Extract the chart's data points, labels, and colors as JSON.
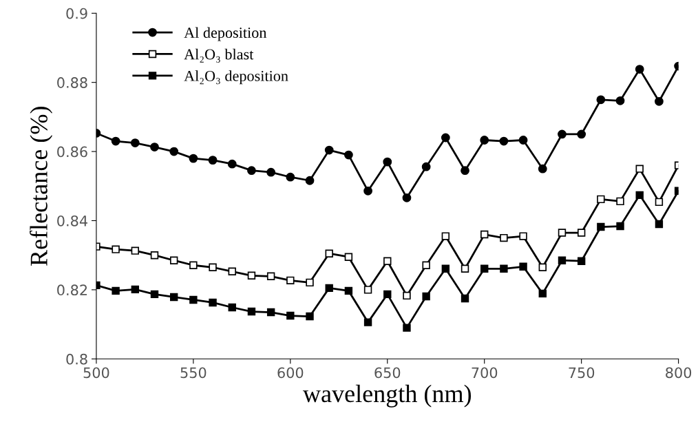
{
  "chart_data": {
    "type": "line",
    "xlabel": "wavelength (nm)",
    "ylabel": "Reflectance (%)",
    "x": [
      500,
      510,
      520,
      530,
      540,
      550,
      560,
      570,
      580,
      590,
      600,
      610,
      620,
      630,
      640,
      650,
      660,
      670,
      680,
      690,
      700,
      710,
      720,
      730,
      740,
      750,
      760,
      770,
      780,
      790,
      800
    ],
    "series": [
      {
        "name": "Al deposition",
        "color": "#000000",
        "marker": "circle",
        "values": [
          0.8653,
          0.863,
          0.8625,
          0.8613,
          0.86,
          0.858,
          0.8575,
          0.8564,
          0.8545,
          0.854,
          0.8526,
          0.8516,
          0.8604,
          0.859,
          0.8486,
          0.857,
          0.8466,
          0.8556,
          0.864,
          0.8545,
          0.8633,
          0.863,
          0.8633,
          0.855,
          0.865,
          0.865,
          0.875,
          0.8747,
          0.8838,
          0.8745,
          0.8847
        ]
      },
      {
        "name": "Al₂O₃ blast",
        "color": "#000000",
        "marker": "square",
        "values": [
          0.8325,
          0.8317,
          0.8313,
          0.83,
          0.8285,
          0.8271,
          0.8265,
          0.8253,
          0.8241,
          0.8239,
          0.8227,
          0.8221,
          0.8305,
          0.8295,
          0.82,
          0.8283,
          0.8183,
          0.8271,
          0.8355,
          0.8261,
          0.836,
          0.835,
          0.8355,
          0.8265,
          0.8365,
          0.8365,
          0.8462,
          0.8456,
          0.855,
          0.8454,
          0.856
        ]
      },
      {
        "name": "Al₂O₃ deposition",
        "color": "#000000",
        "marker": "square",
        "values": [
          0.8213,
          0.8197,
          0.8201,
          0.8187,
          0.8179,
          0.8171,
          0.8163,
          0.8149,
          0.8137,
          0.8135,
          0.8125,
          0.8123,
          0.8205,
          0.8197,
          0.8106,
          0.8187,
          0.809,
          0.8181,
          0.8261,
          0.8175,
          0.8261,
          0.8261,
          0.8267,
          0.8189,
          0.8285,
          0.8283,
          0.8382,
          0.8384,
          0.8474,
          0.839,
          0.8486
        ]
      }
    ],
    "xlim": [
      500,
      800
    ],
    "xticks": [
      500,
      550,
      600,
      650,
      700,
      750,
      800
    ],
    "ylim": [
      0.8,
      0.9
    ],
    "yticks": [
      0.8,
      0.82,
      0.84,
      0.86,
      0.88,
      0.9
    ],
    "grid": false,
    "legend": "top left",
    "line_style": "solid"
  }
}
